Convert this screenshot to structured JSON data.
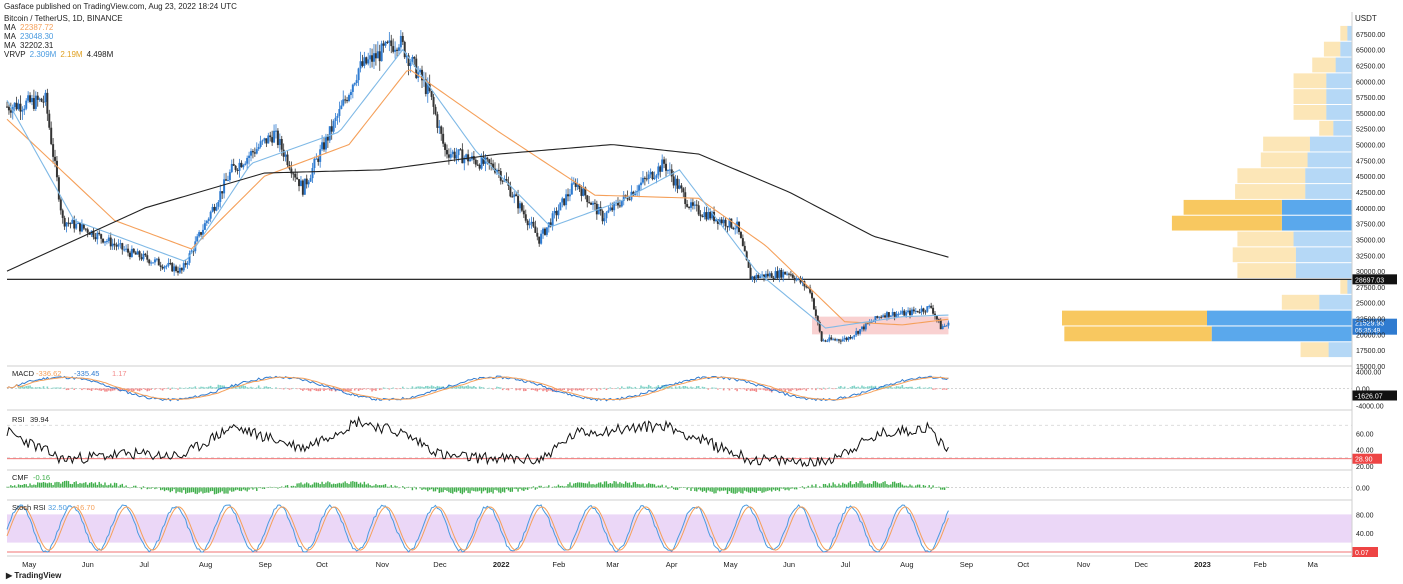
{
  "header": {
    "published": "Gasface published on TradingView.com, Aug 23, 2022 18:24 UTC",
    "symbol": "Bitcoin / TetherUS, 1D, BINANCE",
    "ma_label": "MA",
    "ma20": "22387.72",
    "ma10": "23048.30",
    "ma200": "32202.31",
    "vrvp_label": "VRVP",
    "vrvp_up": "2.309M",
    "vrvp_down": "2.19M",
    "vrvp_total": "4.498M",
    "currency": "USDT",
    "logo": "TradingView"
  },
  "colors": {
    "ma_orange": "#f5a05a",
    "ma_blue": "#7fb9e6",
    "ma_black": "#222222",
    "candle": "#2f7bd0",
    "candle_down": "#333333",
    "vp_up": "#5aa8ec",
    "vp_down": "#f8c860",
    "macd_hist_up": "#7fd3c7",
    "macd_hist_down": "#f28a8a",
    "cmf": "#3fae4a",
    "stoch_band": "#e6cdf5",
    "zone": "#f7c6c6"
  },
  "chart_data": [
    {
      "type": "line",
      "title": "Bitcoin / TetherUS, 1D, BINANCE",
      "ylabel": "USDT",
      "ylim": [
        15000,
        70000
      ],
      "yticks": [
        "15000.00",
        "17500.00",
        "20000.00",
        "22500.00",
        "25000.00",
        "27500.00",
        "30000.00",
        "32500.00",
        "35000.00",
        "37500.00",
        "40000.00",
        "42500.00",
        "45000.00",
        "47500.00",
        "50000.00",
        "52500.00",
        "55000.00",
        "57500.00",
        "60000.00",
        "62500.00",
        "65000.00",
        "67500.00"
      ],
      "x_labels": [
        "May",
        "Jun",
        "Jul",
        "Aug",
        "Sep",
        "Oct",
        "Nov",
        "Dec",
        "2022",
        "Feb",
        "Mar",
        "Apr",
        "May",
        "Jun",
        "Jul",
        "Aug",
        "Sep",
        "Oct",
        "Nov",
        "Dec",
        "2023",
        "Feb",
        "Ma"
      ],
      "price_series": {
        "name": "BTC/USDT",
        "x": [
          "2021-04-20",
          "2021-05-10",
          "2021-05-19",
          "2021-06-01",
          "2021-06-22",
          "2021-07-20",
          "2021-08-15",
          "2021-09-06",
          "2021-09-21",
          "2021-10-10",
          "2021-10-20",
          "2021-11-10",
          "2021-11-26",
          "2021-12-04",
          "2021-12-31",
          "2022-01-22",
          "2022-02-10",
          "2022-02-24",
          "2022-03-28",
          "2022-04-11",
          "2022-05-05",
          "2022-05-12",
          "2022-06-01",
          "2022-06-12",
          "2022-06-18",
          "2022-07-01",
          "2022-07-20",
          "2022-08-01",
          "2022-08-14",
          "2022-08-19",
          "2022-08-23"
        ],
        "close": [
          56000,
          57000,
          38000,
          36500,
          33000,
          30000,
          46000,
          51700,
          43000,
          55000,
          62000,
          66500,
          58000,
          49000,
          46300,
          35000,
          44000,
          38500,
          47000,
          40000,
          37000,
          29000,
          29800,
          27000,
          19000,
          19300,
          23200,
          23300,
          24300,
          21150,
          21529
        ]
      },
      "ma_series": [
        {
          "name": "MA",
          "value_label": "22387.72",
          "color": "#f5a05a",
          "x": [
            "2021-04-20",
            "2021-06-15",
            "2021-07-25",
            "2021-09-01",
            "2021-10-15",
            "2021-11-15",
            "2022-01-01",
            "2022-02-20",
            "2022-04-15",
            "2022-05-20",
            "2022-06-30",
            "2022-07-30",
            "2022-08-23"
          ],
          "y": [
            54000,
            38000,
            33500,
            45000,
            50000,
            62000,
            52000,
            42000,
            41500,
            34000,
            22000,
            21500,
            22387
          ]
        },
        {
          "name": "MA",
          "value_label": "23048.30",
          "color": "#7fb9e6",
          "x": [
            "2021-04-20",
            "2021-05-25",
            "2021-07-22",
            "2021-08-25",
            "2021-10-10",
            "2021-11-12",
            "2021-12-20",
            "2022-01-28",
            "2022-03-05",
            "2022-04-05",
            "2022-05-15",
            "2022-06-20",
            "2022-07-30",
            "2022-08-23"
          ],
          "y": [
            57000,
            38000,
            31500,
            47000,
            52000,
            65000,
            49000,
            37000,
            41000,
            46000,
            30000,
            21000,
            22800,
            23048
          ]
        },
        {
          "name": "MA",
          "value_label": "32202.31",
          "color": "#222222",
          "x": [
            "2021-04-20",
            "2021-07-01",
            "2021-09-01",
            "2021-11-01",
            "2022-01-01",
            "2022-03-01",
            "2022-04-15",
            "2022-06-01",
            "2022-07-15",
            "2022-08-23"
          ],
          "y": [
            30000,
            40000,
            45500,
            46000,
            48500,
            50000,
            48500,
            42500,
            35500,
            32202
          ]
        }
      ],
      "horizontal_level": {
        "value": 28697.03,
        "label": "28697.03"
      },
      "current_price": {
        "value": 21529.93,
        "label": "21529.93",
        "countdown": "05:35:49"
      },
      "support_zone": {
        "from": "2022-06-13",
        "to": "2022-08-23",
        "low": 20000,
        "high": 22800
      },
      "volume_profile": {
        "price_bins": [
          17500,
          20000,
          22500,
          25000,
          27500,
          30000,
          32500,
          35000,
          37500,
          40000,
          42500,
          45000,
          47500,
          50000,
          52500,
          55000,
          57500,
          60000,
          62500,
          65000,
          67500
        ],
        "up_volume": [
          0.1,
          0.6,
          0.62,
          0.14,
          0.02,
          0.24,
          0.24,
          0.25,
          0.3,
          0.3,
          0.2,
          0.2,
          0.19,
          0.18,
          0.08,
          0.11,
          0.11,
          0.11,
          0.07,
          0.05,
          0.02
        ],
        "down_volume": [
          0.12,
          0.63,
          0.62,
          0.16,
          0.03,
          0.25,
          0.27,
          0.24,
          0.47,
          0.42,
          0.3,
          0.29,
          0.2,
          0.2,
          0.06,
          0.14,
          0.14,
          0.14,
          0.1,
          0.07,
          0.03
        ]
      }
    },
    {
      "type": "line",
      "title": "MACD",
      "values_label": [
        "-336.62",
        "-335.45",
        "1.17"
      ],
      "ylim": [
        -5000,
        5000
      ],
      "yticks": [
        "4000.00",
        "0.00",
        "-4000.00"
      ],
      "level_label": "-1626.07"
    },
    {
      "type": "line",
      "title": "RSI",
      "value_label": "39.94",
      "ylim": [
        20,
        80
      ],
      "yticks": [
        "60.00",
        "40.00",
        "20.00"
      ],
      "level_label": "28.90",
      "x": [
        "2021-04-20",
        "2021-05-19",
        "2021-06-22",
        "2021-07-20",
        "2021-08-15",
        "2021-09-21",
        "2021-10-20",
        "2021-11-12",
        "2021-12-04",
        "2022-01-22",
        "2022-02-10",
        "2022-03-28",
        "2022-05-12",
        "2022-06-18",
        "2022-07-20",
        "2022-08-12",
        "2022-08-23"
      ],
      "y": [
        62,
        28,
        35,
        32,
        68,
        42,
        75,
        60,
        32,
        27,
        60,
        70,
        28,
        24,
        60,
        67,
        39.94
      ]
    },
    {
      "type": "area",
      "title": "CMF",
      "value_label": "-0.16",
      "yticks": [
        "0.00"
      ]
    },
    {
      "type": "line",
      "title": "Stoch RSI",
      "values_label": [
        "32.50",
        "16.70"
      ],
      "ylim": [
        0,
        100
      ],
      "yticks": [
        "80.00",
        "40.00"
      ],
      "level_label": "0.07"
    }
  ]
}
